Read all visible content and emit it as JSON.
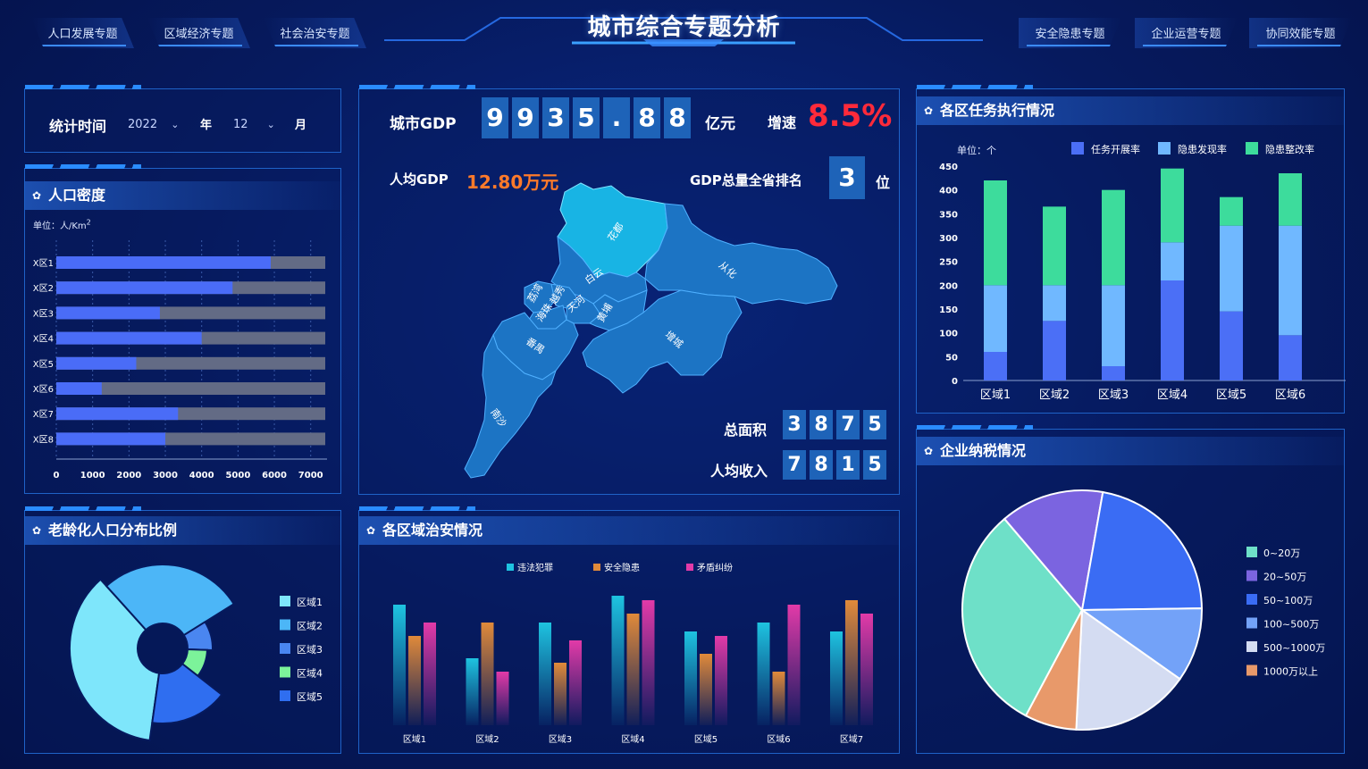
{
  "header": {
    "title": "城市综合专题分析",
    "left_tabs": [
      "人口发展专题",
      "区域经济专题",
      "社会治安专题"
    ],
    "right_tabs": [
      "安全隐患专题",
      "企业运营专题",
      "协同效能专题"
    ]
  },
  "filter": {
    "label": "统计时间",
    "year_value": "2022",
    "year_unit": "年",
    "month_value": "12",
    "month_unit": "月"
  },
  "gdp": {
    "label": "城市GDP",
    "digits": [
      "9",
      "9",
      "3",
      "5",
      ".",
      "8",
      "8"
    ],
    "unit": "亿元",
    "growth_label": "增速",
    "growth_value": "8.5%",
    "per_capita_label": "人均GDP",
    "per_capita_value": "12.80万元",
    "rank_label": "GDP总量全省排名",
    "rank_value": "3",
    "rank_unit": "位",
    "area_label": "总面积",
    "area_digits": [
      "3",
      "8",
      "7",
      "5"
    ],
    "income_label": "人均收入",
    "income_digits": [
      "7",
      "8",
      "1",
      "5"
    ],
    "map_districts": [
      "花都",
      "从化",
      "白云",
      "荔湾",
      "越秀",
      "海珠",
      "天河",
      "黄埔",
      "番禺",
      "增城",
      "南沙"
    ]
  },
  "population_density": {
    "title": "人口密度",
    "unit": "单位：人/Km",
    "unit_sup": "2",
    "colors": {
      "value": "#4a6cf7",
      "rest": "#636b85"
    },
    "chart_data": {
      "type": "bar",
      "orientation": "horizontal",
      "categories": [
        "X区1",
        "X区2",
        "X区3",
        "X区4",
        "X区5",
        "X区6",
        "X区7",
        "X区8"
      ],
      "values": [
        5900,
        4850,
        2850,
        4000,
        2200,
        1250,
        3350,
        3000
      ],
      "background_max": 7400,
      "xlim": [
        0,
        7400
      ],
      "ticks": [
        "0",
        "1000",
        "2000",
        "3000",
        "4000",
        "5000",
        "6000",
        "7000"
      ]
    }
  },
  "tasks": {
    "title": "各区任务执行情况",
    "unit": "单位：个",
    "chart_data": {
      "type": "bar",
      "stacked": true,
      "categories": [
        "区域1",
        "区域2",
        "区域3",
        "区域4",
        "区域5",
        "区域6"
      ],
      "series": [
        {
          "name": "任务开展率",
          "color": "#4b6ff6",
          "values": [
            60,
            125,
            30,
            210,
            145,
            95
          ]
        },
        {
          "name": "隐患发现率",
          "color": "#70b8ff",
          "values": [
            140,
            75,
            170,
            80,
            180,
            230
          ]
        },
        {
          "name": "隐患整改率",
          "color": "#3ddc9c",
          "values": [
            220,
            165,
            200,
            155,
            60,
            110
          ]
        }
      ],
      "ylim": [
        0,
        450
      ],
      "yticks": [
        "0",
        "50",
        "100",
        "150",
        "200",
        "250",
        "300",
        "350",
        "400",
        "450"
      ]
    }
  },
  "aging": {
    "title": "老龄化人口分布比例",
    "chart_data": {
      "type": "pie",
      "variant": "rose",
      "labels": [
        "区域1",
        "区域2",
        "区域3",
        "区域4",
        "区域5"
      ],
      "colors": [
        "#7ee6fb",
        "#4cb6f7",
        "#4a86f0",
        "#7cf39a",
        "#2f6ef0"
      ]
    }
  },
  "security": {
    "title": "各区域治安情况",
    "chart_data": {
      "type": "bar",
      "categories": [
        "区域1",
        "区域2",
        "区域3",
        "区域4",
        "区域5",
        "区域6",
        "区域7"
      ],
      "series": [
        {
          "name": "违法犯罪",
          "color": "#1ec3e0",
          "values": [
            135,
            75,
            115,
            145,
            105,
            115,
            105
          ]
        },
        {
          "name": "安全隐患",
          "color": "#e08a3a",
          "values": [
            100,
            115,
            70,
            125,
            80,
            60,
            140
          ]
        },
        {
          "name": "矛盾纠纷",
          "color": "#e23aa8",
          "values": [
            115,
            60,
            95,
            140,
            100,
            135,
            125
          ]
        }
      ],
      "ymax": 160
    }
  },
  "tax": {
    "title": "企业纳税情况",
    "chart_data": {
      "type": "pie",
      "labels": [
        "0~20万",
        "20~50万",
        "50~100万",
        "100~500万",
        "500~1000万",
        "1000万以上"
      ],
      "colors": [
        "#6ee0c8",
        "#7b64e0",
        "#3a6cf4",
        "#73a2f8",
        "#d4dcf2",
        "#e8996a"
      ],
      "values": [
        31,
        14,
        22,
        10,
        16,
        7
      ]
    }
  }
}
